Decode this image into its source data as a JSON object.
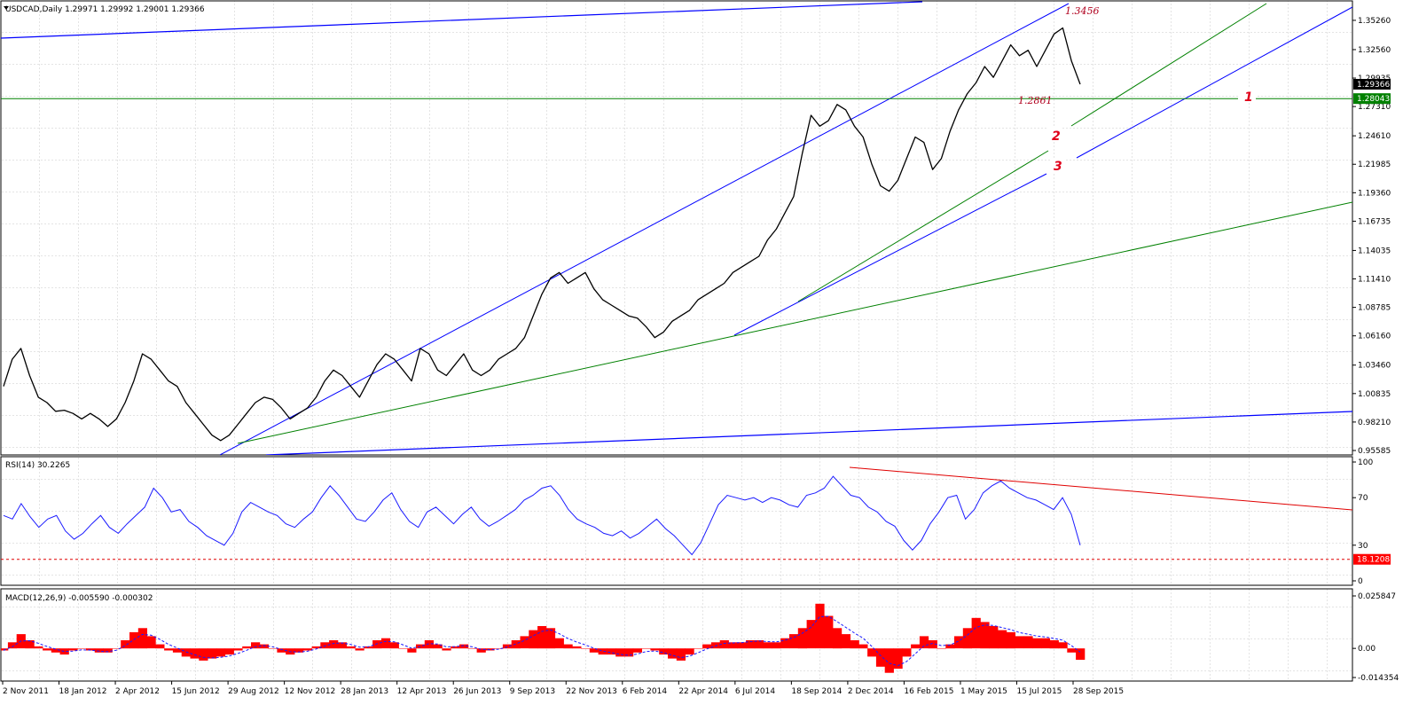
{
  "chart_data": [
    {
      "type": "line",
      "title": "USDCAD,Daily  1.29971 1.29992 1.29001 1.29366",
      "ylim": [
        0.95585,
        1.364
      ],
      "y_ticks": [
        "1.35260",
        "1.32560",
        "1.29935",
        "1.27310",
        "1.24610",
        "1.21985",
        "1.19360",
        "1.16735",
        "1.14035",
        "1.11410",
        "1.08785",
        "1.06160",
        "1.03460",
        "1.00835",
        "0.98210",
        "0.95585"
      ],
      "price_badge": "1.29366",
      "level_badge": "1.28043",
      "level_value": 1.28043,
      "x_ticks": [
        "2 Nov 2011",
        "18 Jan 2012",
        "2 Apr 2012",
        "15 Jun 2012",
        "29 Aug 2012",
        "12 Nov 2012",
        "28 Jan 2013",
        "12 Apr 2013",
        "26 Jun 2013",
        "9 Sep 2013",
        "22 Nov 2013",
        "6 Feb 2014",
        "22 Apr 2014",
        "6 Jul 2014",
        "18 Sep 2014",
        "2 Dec 2014",
        "16 Feb 2015",
        "1 May 2015",
        "15 Jul 2015",
        "28 Sep 2015"
      ],
      "annotations": [
        "1.3456",
        "1.2861",
        "1",
        "2",
        "3"
      ],
      "series": [
        {
          "values": [
            1.015,
            1.04,
            1.05,
            1.025,
            1.005,
            1.0,
            0.992,
            0.993,
            0.99,
            0.985,
            0.99,
            0.985,
            0.978,
            0.985,
            1.0,
            1.02,
            1.045,
            1.04,
            1.03,
            1.02,
            1.015,
            1.0,
            0.99,
            0.98,
            0.97,
            0.965,
            0.97,
            0.98,
            0.99,
            1.0,
            1.005,
            1.003,
            0.995,
            0.985,
            0.99,
            0.995,
            1.005,
            1.02,
            1.03,
            1.025,
            1.015,
            1.005,
            1.02,
            1.035,
            1.045,
            1.04,
            1.03,
            1.02,
            1.05,
            1.045,
            1.03,
            1.025,
            1.035,
            1.045,
            1.03,
            1.025,
            1.03,
            1.04,
            1.045,
            1.05,
            1.06,
            1.08,
            1.1,
            1.115,
            1.12,
            1.11,
            1.115,
            1.12,
            1.105,
            1.095,
            1.09,
            1.085,
            1.08,
            1.078,
            1.07,
            1.06,
            1.065,
            1.075,
            1.08,
            1.085,
            1.095,
            1.1,
            1.105,
            1.11,
            1.12,
            1.125,
            1.13,
            1.135,
            1.15,
            1.16,
            1.175,
            1.19,
            1.23,
            1.265,
            1.255,
            1.26,
            1.275,
            1.27,
            1.255,
            1.245,
            1.22,
            1.2,
            1.195,
            1.205,
            1.225,
            1.245,
            1.24,
            1.215,
            1.225,
            1.25,
            1.27,
            1.285,
            1.295,
            1.31,
            1.3,
            1.315,
            1.33,
            1.32,
            1.325,
            1.31,
            1.325,
            1.34,
            1.3456,
            1.315,
            1.29366
          ]
        }
      ]
    },
    {
      "type": "line",
      "title": "RSI(14) 30.2265",
      "ylim": [
        0,
        100
      ],
      "y_ticks": [
        "100",
        "70",
        "30",
        "0"
      ],
      "level_badge": "18.1208",
      "level_value": 18.12,
      "series": [
        {
          "values": [
            55,
            52,
            65,
            54,
            45,
            52,
            55,
            42,
            35,
            40,
            48,
            55,
            45,
            40,
            48,
            55,
            62,
            78,
            70,
            58,
            60,
            50,
            45,
            38,
            34,
            30,
            40,
            58,
            66,
            62,
            58,
            55,
            48,
            45,
            52,
            58,
            70,
            80,
            72,
            62,
            52,
            50,
            58,
            68,
            74,
            60,
            50,
            45,
            58,
            62,
            55,
            48,
            56,
            62,
            52,
            46,
            50,
            55,
            60,
            68,
            72,
            78,
            80,
            72,
            60,
            52,
            48,
            45,
            40,
            38,
            42,
            36,
            40,
            46,
            52,
            44,
            38,
            30,
            22,
            32,
            48,
            64,
            72,
            70,
            68,
            70,
            66,
            70,
            68,
            64,
            62,
            72,
            74,
            78,
            88,
            80,
            72,
            70,
            62,
            58,
            50,
            46,
            34,
            26,
            34,
            48,
            58,
            70,
            72,
            52,
            60,
            74,
            80,
            84,
            78,
            74,
            70,
            68,
            64,
            60,
            70,
            56,
            30
          ]
        }
      ]
    },
    {
      "type": "area",
      "title": "MACD(12,26,9) -0.005590 -0.000302",
      "ylim": [
        -0.01435,
        0.02585
      ],
      "y_ticks": [
        "0.025847",
        "0.00",
        "-0.014354"
      ],
      "series": [
        {
          "values": [
            -0.001,
            0.003,
            0.007,
            0.004,
            0.001,
            -0.001,
            -0.002,
            -0.003,
            -0.001,
            0.0,
            -0.001,
            -0.002,
            -0.002,
            0.0,
            0.004,
            0.008,
            0.01,
            0.006,
            0.002,
            -0.001,
            -0.002,
            -0.004,
            -0.005,
            -0.006,
            -0.005,
            -0.004,
            -0.003,
            -0.001,
            0.001,
            0.003,
            0.002,
            0.0,
            -0.002,
            -0.003,
            -0.002,
            -0.001,
            0.001,
            0.003,
            0.004,
            0.003,
            0.001,
            -0.001,
            0.001,
            0.004,
            0.005,
            0.003,
            0.0,
            -0.002,
            0.002,
            0.004,
            0.002,
            -0.001,
            0.001,
            0.002,
            0.0,
            -0.002,
            -0.001,
            0.0,
            0.002,
            0.004,
            0.006,
            0.009,
            0.011,
            0.01,
            0.005,
            0.002,
            0.001,
            0.0,
            -0.002,
            -0.003,
            -0.003,
            -0.004,
            -0.004,
            -0.002,
            0.0,
            -0.001,
            -0.003,
            -0.005,
            -0.006,
            -0.003,
            0.0,
            0.002,
            0.003,
            0.004,
            0.003,
            0.003,
            0.004,
            0.004,
            0.003,
            0.003,
            0.005,
            0.007,
            0.01,
            0.014,
            0.022,
            0.016,
            0.01,
            0.007,
            0.004,
            0.002,
            -0.004,
            -0.009,
            -0.012,
            -0.01,
            -0.004,
            0.002,
            0.006,
            0.004,
            0.0,
            0.002,
            0.006,
            0.01,
            0.015,
            0.013,
            0.011,
            0.009,
            0.008,
            0.006,
            0.006,
            0.005,
            0.005,
            0.004,
            0.003,
            -0.002,
            -0.00559
          ]
        }
      ]
    }
  ]
}
